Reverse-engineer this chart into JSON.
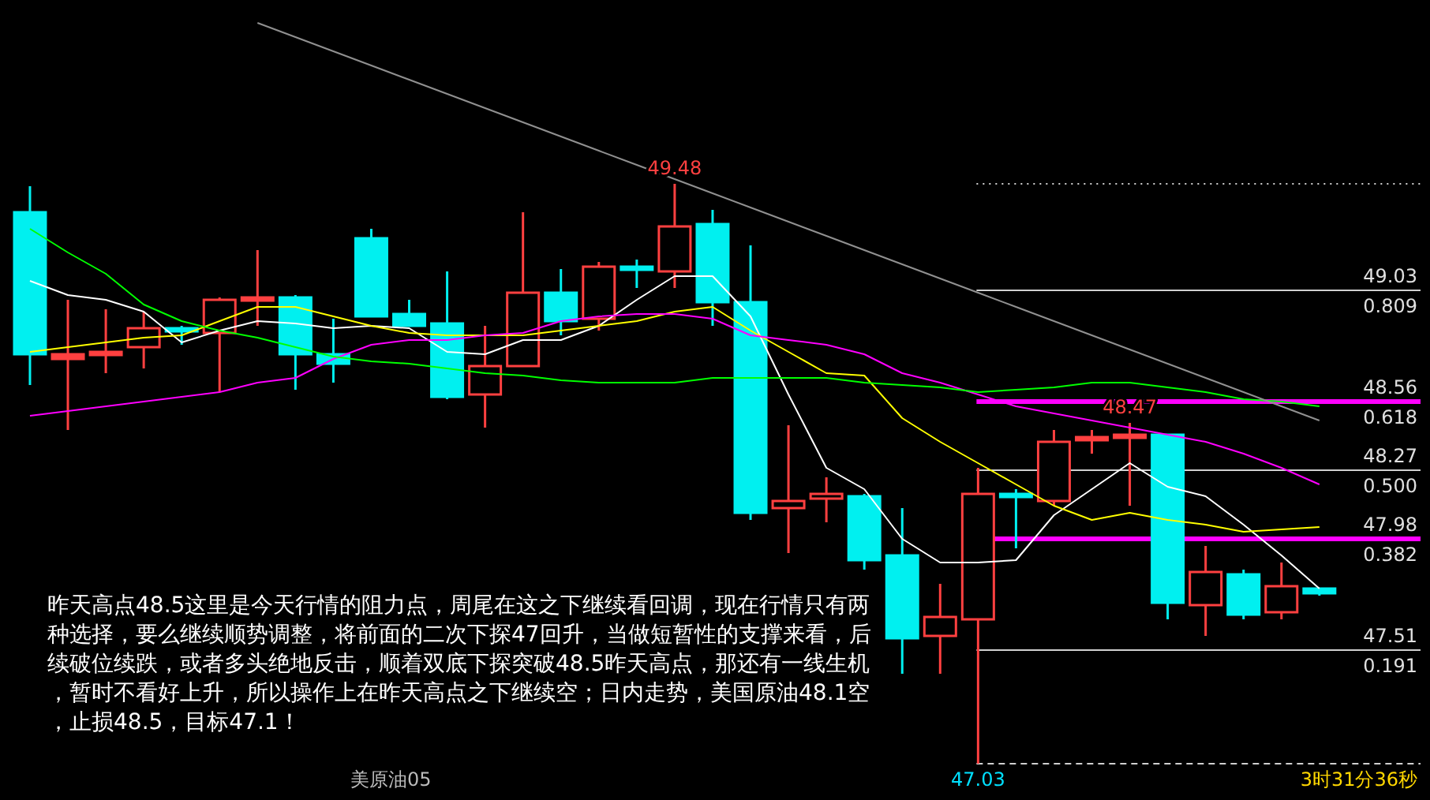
{
  "chart_data": {
    "type": "candlestick",
    "categories": [
      null,
      null,
      null,
      null,
      null,
      null,
      null,
      null,
      null,
      null,
      null,
      null,
      null,
      null,
      null,
      null,
      null,
      null,
      null,
      null,
      null,
      null,
      null,
      null,
      null,
      null,
      null,
      null,
      null,
      null,
      null,
      null,
      null,
      null,
      null
    ],
    "ohlc": [
      [
        49.36,
        49.47,
        48.63,
        48.76
      ],
      [
        48.74,
        48.99,
        48.44,
        48.76
      ],
      [
        48.76,
        48.95,
        48.68,
        48.77
      ],
      [
        48.79,
        48.94,
        48.7,
        48.87
      ],
      [
        48.87,
        48.88,
        48.8,
        48.86
      ],
      [
        48.85,
        49.0,
        48.6,
        48.99
      ],
      [
        48.99,
        49.2,
        48.88,
        49.0
      ],
      [
        49.0,
        49.01,
        48.61,
        48.76
      ],
      [
        48.76,
        48.91,
        48.64,
        48.72
      ],
      [
        49.25,
        49.29,
        48.92,
        48.92
      ],
      [
        48.93,
        48.99,
        48.88,
        48.88
      ],
      [
        48.89,
        49.11,
        48.57,
        48.58
      ],
      [
        48.59,
        48.88,
        48.45,
        48.71
      ],
      [
        48.71,
        49.36,
        48.71,
        49.02
      ],
      [
        49.02,
        49.12,
        48.84,
        48.9
      ],
      [
        48.91,
        49.15,
        48.86,
        49.13
      ],
      [
        49.13,
        49.16,
        49.04,
        49.12
      ],
      [
        49.11,
        49.48,
        49.04,
        49.3
      ],
      [
        49.31,
        49.37,
        48.88,
        48.98
      ],
      [
        48.98,
        49.22,
        48.06,
        48.09
      ],
      [
        48.11,
        48.46,
        47.92,
        48.14
      ],
      [
        48.15,
        48.24,
        48.05,
        48.17
      ],
      [
        48.16,
        48.17,
        47.85,
        47.89
      ],
      [
        47.91,
        48.11,
        47.41,
        47.56
      ],
      [
        47.57,
        47.79,
        47.41,
        47.65
      ],
      [
        47.64,
        48.28,
        47.03,
        48.17
      ],
      [
        48.17,
        48.19,
        47.94,
        48.16
      ],
      [
        48.14,
        48.44,
        48.12,
        48.39
      ],
      [
        48.4,
        48.44,
        48.34,
        48.41
      ],
      [
        48.41,
        48.47,
        48.12,
        48.42
      ],
      [
        48.42,
        48.42,
        47.64,
        47.71
      ],
      [
        47.7,
        47.95,
        47.57,
        47.84
      ],
      [
        47.83,
        47.85,
        47.64,
        47.66
      ],
      [
        47.67,
        47.88,
        47.64,
        47.78
      ],
      [
        47.77,
        47.77,
        47.74,
        47.75
      ]
    ],
    "colors": [
      "#00f0f0",
      "#ff4040",
      "#ff4040",
      "#ff4040",
      "#00f0f0",
      "#ff4040",
      "#ff4040",
      "#00f0f0",
      "#00f0f0",
      "#00f0f0",
      "#00f0f0",
      "#00f0f0",
      "#ff4040",
      "#ff4040",
      "#00f0f0",
      "#ff4040",
      "#00f0f0",
      "#ff4040",
      "#00f0f0",
      "#00f0f0",
      "#ff4040",
      "#ff4040",
      "#00f0f0",
      "#00f0f0",
      "#ff4040",
      "#ff4040",
      "#00f0f0",
      "#ff4040",
      "#ff4040",
      "#ff4040",
      "#00f0f0",
      "#ff4040",
      "#00f0f0",
      "#ff4040",
      "#00f0f0"
    ],
    "series": [
      {
        "type": "line",
        "color": "#ffffff",
        "values": [
          49.07,
          49.01,
          48.99,
          48.94,
          48.81,
          48.86,
          48.9,
          48.89,
          48.87,
          48.88,
          48.87,
          48.77,
          48.76,
          48.82,
          48.82,
          48.88,
          48.99,
          49.09,
          49.09,
          48.92,
          48.59,
          48.28,
          48.19,
          47.98,
          47.88,
          47.88,
          47.89,
          48.08,
          48.19,
          48.3,
          48.2,
          48.16,
          48.04,
          47.91,
          47.77
        ]
      },
      {
        "type": "line",
        "color": "#ffff00",
        "values": [
          48.77,
          48.79,
          48.81,
          48.83,
          48.84,
          48.9,
          48.96,
          48.96,
          48.92,
          48.88,
          48.85,
          48.84,
          48.84,
          48.84,
          48.86,
          48.88,
          48.9,
          48.94,
          48.96,
          48.86,
          48.77,
          48.68,
          48.67,
          48.49,
          48.39,
          48.3,
          48.21,
          48.12,
          48.06,
          48.09,
          48.06,
          48.04,
          48.01,
          48.02,
          48.03
        ]
      },
      {
        "type": "line",
        "color": "#ff00ff",
        "values": [
          48.5,
          48.52,
          48.54,
          48.56,
          48.58,
          48.6,
          48.64,
          48.66,
          48.74,
          48.8,
          48.82,
          48.82,
          48.84,
          48.85,
          48.9,
          48.92,
          48.93,
          48.93,
          48.91,
          48.84,
          48.82,
          48.8,
          48.76,
          48.68,
          48.64,
          48.59,
          48.54,
          48.51,
          48.48,
          48.45,
          48.42,
          48.39,
          48.34,
          48.28,
          48.21
        ]
      },
      {
        "type": "line",
        "color": "#00ff00",
        "values": [
          49.29,
          49.19,
          49.1,
          48.97,
          48.9,
          48.86,
          48.83,
          48.79,
          48.75,
          48.73,
          48.72,
          48.7,
          48.68,
          48.67,
          48.65,
          48.64,
          48.64,
          48.64,
          48.66,
          48.66,
          48.66,
          48.66,
          48.64,
          48.63,
          48.62,
          48.6,
          48.61,
          48.62,
          48.64,
          48.64,
          48.62,
          48.6,
          48.57,
          48.56,
          48.54
        ]
      },
      {
        "type": "line",
        "color": "#909090",
        "values": [
          null,
          null,
          null,
          null,
          null,
          null,
          50.16,
          50.1,
          50.04,
          49.98,
          49.92,
          49.86,
          49.8,
          49.74,
          49.68,
          49.62,
          49.56,
          49.5,
          49.44,
          49.38,
          49.32,
          49.26,
          49.2,
          49.14,
          49.08,
          49.02,
          48.96,
          48.9,
          48.84,
          48.78,
          48.72,
          48.66,
          48.6,
          48.54,
          48.48
        ]
      }
    ],
    "ref_lines": [
      {
        "axis": "y",
        "value": 49.48,
        "label": null,
        "color": "#d0d0d0",
        "line_style": "dotted"
      },
      {
        "axis": "y",
        "value": 49.03,
        "label": "49.03\n0.809",
        "color": "#d0d0d0",
        "line_style": "solid"
      },
      {
        "axis": "y",
        "value": 48.56,
        "label": "48.56\n0.618",
        "color": "#ff00ff",
        "line_style": "solid"
      },
      {
        "axis": "y",
        "value": 48.27,
        "label": "48.27\n0.500",
        "color": "#d0d0d0",
        "line_style": "solid"
      },
      {
        "axis": "y",
        "value": 47.98,
        "label": "47.98\n0.382",
        "color": "#ff00ff",
        "line_style": "solid"
      },
      {
        "axis": "y",
        "value": 47.51,
        "label": "47.51\n0.191",
        "color": "#d0d0d0",
        "line_style": "solid"
      },
      {
        "axis": "y",
        "value": 47.03,
        "label": null,
        "color": "#d0d0d0",
        "line_style": "dashed"
      }
    ],
    "annotations": [
      "昨天高点48.5这里是今天行情的阻力点，周尾在这之下继续看回调，现在行情只有两种选择，要么继续顺势调整，将前面的二次下探47回升，当做短暂性的支撑来看，后续破位续跌，或者多头绝地反击，顺着双底下探突破48.5昨天高点，那还有一线生机，暂时不看好上升，所以操作上在昨天高点之下继续空；日内走势，美国原油48.1空，止损48.5，目标47.1！",
      "美原油05",
      "3时31分36秒",
      {
        "text": "49.48",
        "y": 49.48
      },
      {
        "text": "48.47",
        "y": 48.47
      },
      {
        "text": "47.03",
        "y": 47.03
      }
    ],
    "marker": "none"
  }
}
